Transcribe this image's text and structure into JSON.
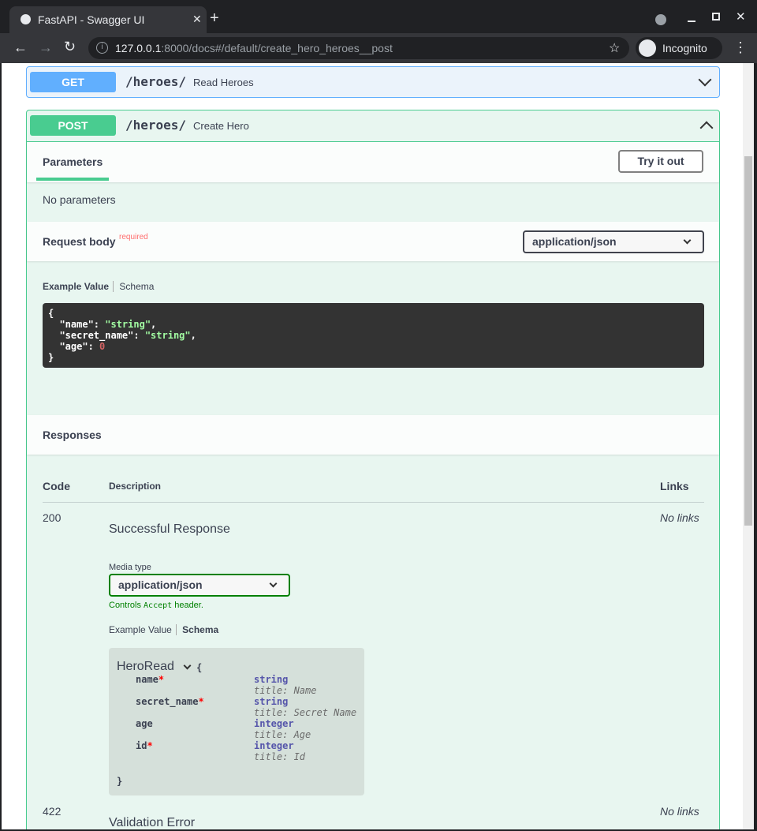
{
  "browser": {
    "tab_title": "FastAPI - Swagger UI",
    "url_host": "127.0.0.1",
    "url_rest": ":8000/docs#/default/create_hero_heroes__post",
    "profile": "Incognito"
  },
  "get_op": {
    "method": "GET",
    "path": "/heroes/",
    "summary": "Read Heroes"
  },
  "post_op": {
    "method": "POST",
    "path": "/heroes/",
    "summary": "Create Hero",
    "parameters_tab": "Parameters",
    "try_button": "Try it out",
    "no_params": "No parameters",
    "request_body": "Request body",
    "required": "required",
    "content_type": "application/json",
    "example_tab": "Example Value",
    "schema_tab": "Schema",
    "example_lines": [
      [
        "{"
      ],
      [
        "  \"name\"",
        ": ",
        "\"string\"",
        ","
      ],
      [
        "  \"secret_name\"",
        ": ",
        "\"string\"",
        ","
      ],
      [
        "  \"age\"",
        ": ",
        "0",
        ""
      ],
      [
        "}"
      ]
    ],
    "responses_title": "Responses",
    "col_code": "Code",
    "col_desc": "Description",
    "col_links": "Links",
    "responses": [
      {
        "code": "200",
        "desc": "Successful Response",
        "links": "No links",
        "media_label": "Media type",
        "media": "application/json",
        "controls_pre": "Controls ",
        "controls_code": "Accept",
        "controls_post": " header.",
        "example_tab": "Example Value",
        "schema_tab": "Schema",
        "model": {
          "name": "HeroRead",
          "open": "{",
          "close": "}",
          "props": [
            {
              "name": "name",
              "required": true,
              "type": "string",
              "title": "title: Name"
            },
            {
              "name": "secret_name",
              "required": true,
              "type": "string",
              "title": "title: Secret Name"
            },
            {
              "name": "age",
              "required": false,
              "type": "integer",
              "title": "title: Age"
            },
            {
              "name": "id",
              "required": true,
              "type": "integer",
              "title": "title: Id"
            }
          ]
        }
      },
      {
        "code": "422",
        "desc": "Validation Error",
        "links": "No links"
      }
    ]
  },
  "colors": {
    "get": "#61affe",
    "post": "#49cc90",
    "required": "#ff6f6f"
  }
}
